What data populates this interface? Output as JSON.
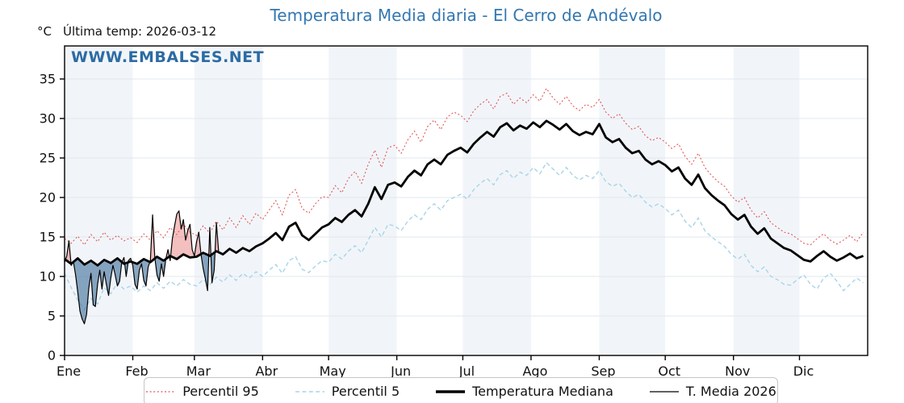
{
  "title": "Temperatura Media diaria - El Cerro de Andévalo",
  "header": {
    "unit_label": "°C",
    "last_temp": "Última temp: 2026-03-12"
  },
  "watermark": "WWW.EMBALSES.NET",
  "colors": {
    "title": "#3377b0",
    "watermark": "#2d6ba3",
    "p95": "#e45756",
    "p5": "#a9d4e8",
    "median": "#000000",
    "t2026": "#000000",
    "fill_above": "rgba(230,112,112,0.45)",
    "fill_below": "rgba(73,119,159,0.65)",
    "band": "#f1f5f9",
    "grid": "#e2e8ef",
    "axis": "#000000",
    "tick_text": "#111111"
  },
  "chart_data": {
    "type": "line",
    "title": "Temperatura Media diaria - El Cerro de Andévalo",
    "ylabel": "°C",
    "xlabel": "",
    "ylim": [
      0,
      39.2
    ],
    "yticks": [
      0,
      5,
      10,
      15,
      20,
      25,
      30,
      35
    ],
    "x_tick_labels": [
      "Ene",
      "Feb",
      "Mar",
      "Abr",
      "May",
      "Jun",
      "Jul",
      "Ago",
      "Sep",
      "Oct",
      "Nov",
      "Dic"
    ],
    "month_start_days": [
      0,
      31,
      59,
      90,
      120,
      151,
      181,
      212,
      243,
      273,
      304,
      334,
      365
    ],
    "grid": "horizontal",
    "legend_position": "bottom",
    "annotation": "Última temp: 2026-03-12",
    "series": [
      {
        "name": "Percentil 95",
        "style": "dotted",
        "color_key": "p95",
        "x_step_days": 3,
        "values": [
          14.8,
          14.2,
          15.1,
          14.0,
          15.3,
          14.4,
          15.6,
          14.6,
          15.2,
          14.5,
          14.9,
          14.3,
          15.4,
          14.6,
          15.8,
          14.9,
          16.2,
          15.3,
          16.6,
          15.6,
          15.2,
          16.4,
          15.5,
          17.0,
          15.9,
          17.4,
          16.2,
          17.7,
          16.6,
          18.0,
          17.2,
          18.4,
          19.6,
          17.8,
          20.3,
          21.0,
          18.6,
          18.0,
          19.2,
          20.1,
          20.0,
          21.5,
          20.6,
          22.4,
          23.3,
          21.8,
          24.2,
          26.0,
          23.8,
          26.3,
          26.6,
          25.6,
          27.3,
          28.4,
          27.0,
          29.0,
          29.8,
          28.6,
          30.2,
          30.8,
          30.4,
          29.6,
          31.0,
          31.8,
          32.4,
          31.2,
          32.8,
          33.2,
          31.8,
          32.6,
          32.0,
          33.0,
          32.2,
          33.8,
          32.6,
          31.8,
          32.8,
          31.6,
          31.0,
          31.8,
          31.4,
          32.4,
          30.8,
          30.0,
          30.6,
          29.4,
          28.6,
          29.0,
          27.8,
          27.2,
          27.6,
          27.0,
          26.2,
          26.8,
          25.2,
          24.2,
          25.6,
          23.8,
          22.8,
          22.0,
          21.4,
          20.2,
          19.4,
          20.0,
          18.4,
          17.4,
          18.2,
          16.8,
          16.2,
          15.6,
          15.4,
          14.8,
          14.2,
          14.0,
          14.8,
          15.4,
          14.6,
          14.1,
          14.6,
          15.2,
          14.4,
          15.6
        ]
      },
      {
        "name": "Percentil 5",
        "style": "dashed",
        "color_key": "p5",
        "x_step_days": 3,
        "values": [
          10.4,
          8.6,
          7.0,
          5.8,
          7.2,
          6.5,
          8.6,
          7.8,
          9.2,
          8.4,
          8.8,
          8.0,
          8.8,
          8.2,
          9.2,
          8.5,
          9.4,
          8.8,
          9.6,
          9.0,
          8.8,
          9.6,
          9.0,
          9.9,
          9.3,
          10.2,
          9.5,
          10.4,
          9.8,
          10.6,
          10.0,
          10.8,
          11.5,
          10.4,
          12.0,
          12.5,
          10.9,
          10.5,
          11.3,
          12.0,
          11.8,
          12.8,
          12.2,
          13.2,
          13.9,
          13.0,
          14.6,
          16.2,
          15.0,
          16.6,
          16.4,
          15.8,
          17.0,
          17.8,
          17.2,
          18.5,
          19.2,
          18.4,
          19.6,
          20.0,
          20.4,
          19.8,
          21.0,
          21.8,
          22.4,
          21.6,
          22.9,
          23.4,
          22.4,
          23.2,
          22.8,
          23.8,
          23.0,
          24.4,
          23.6,
          22.8,
          23.8,
          22.8,
          22.2,
          22.8,
          22.4,
          23.4,
          22.0,
          21.4,
          21.8,
          20.8,
          20.0,
          20.4,
          19.4,
          18.8,
          19.2,
          18.6,
          17.8,
          18.4,
          17.0,
          16.2,
          17.4,
          15.8,
          15.0,
          14.4,
          13.8,
          12.8,
          12.2,
          12.8,
          11.4,
          10.6,
          11.2,
          10.0,
          9.6,
          9.0,
          8.9,
          9.6,
          10.2,
          9.0,
          8.4,
          9.8,
          10.4,
          9.4,
          8.2,
          9.0,
          9.8,
          9.2
        ]
      },
      {
        "name": "Temperatura Mediana",
        "style": "solid-thick",
        "color_key": "median",
        "x_step_days": 3,
        "values": [
          12.2,
          11.6,
          12.3,
          11.5,
          12.0,
          11.4,
          12.1,
          11.7,
          12.3,
          11.6,
          11.9,
          11.6,
          12.2,
          11.8,
          12.5,
          12.0,
          12.6,
          12.2,
          12.8,
          12.4,
          12.5,
          13.0,
          12.6,
          13.2,
          12.8,
          13.5,
          13.0,
          13.6,
          13.2,
          13.8,
          14.2,
          14.8,
          15.5,
          14.6,
          16.3,
          16.8,
          15.2,
          14.6,
          15.4,
          16.2,
          16.6,
          17.4,
          16.9,
          17.8,
          18.4,
          17.6,
          19.2,
          21.3,
          19.8,
          21.6,
          21.9,
          21.4,
          22.6,
          23.4,
          22.8,
          24.2,
          24.8,
          24.2,
          25.4,
          25.9,
          26.3,
          25.7,
          26.8,
          27.6,
          28.3,
          27.7,
          28.9,
          29.4,
          28.5,
          29.1,
          28.7,
          29.5,
          28.9,
          29.7,
          29.2,
          28.6,
          29.3,
          28.4,
          27.9,
          28.3,
          28.0,
          29.3,
          27.6,
          27.0,
          27.4,
          26.3,
          25.6,
          25.9,
          24.8,
          24.2,
          24.6,
          24.1,
          23.3,
          23.8,
          22.4,
          21.6,
          22.9,
          21.2,
          20.3,
          19.6,
          19.0,
          17.9,
          17.2,
          17.8,
          16.3,
          15.4,
          16.1,
          14.8,
          14.2,
          13.6,
          13.3,
          12.7,
          12.1,
          11.9,
          12.6,
          13.2,
          12.5,
          12.0,
          12.4,
          12.9,
          12.3,
          12.6
        ]
      },
      {
        "name": "T. Media 2026",
        "style": "solid-thin",
        "color_key": "t2026",
        "x_step_days": 1,
        "fill_vs": "Temperatura Mediana",
        "fill_above_key": "fill_above",
        "fill_below_key": "fill_below",
        "values": [
          11.8,
          12.6,
          14.5,
          11.4,
          11.9,
          10.2,
          8.0,
          5.6,
          4.6,
          4.0,
          5.2,
          8.5,
          10.4,
          6.4,
          6.2,
          9.0,
          10.8,
          8.4,
          10.6,
          9.0,
          7.6,
          9.8,
          11.4,
          10.2,
          8.8,
          9.4,
          11.8,
          12.4,
          10.0,
          12.0,
          12.3,
          11.4,
          9.0,
          8.4,
          10.8,
          11.6,
          9.5,
          8.8,
          11.2,
          12.0,
          17.8,
          12.4,
          10.2,
          9.4,
          11.6,
          10.0,
          12.2,
          13.4,
          12.0,
          14.8,
          16.4,
          17.9,
          18.3,
          16.0,
          17.2,
          14.6,
          15.8,
          16.6,
          13.4,
          12.6,
          14.4,
          15.6,
          12.8,
          11.0,
          9.7,
          8.2,
          16.2,
          9.2,
          10.8,
          16.8,
          13.2
        ]
      }
    ]
  }
}
